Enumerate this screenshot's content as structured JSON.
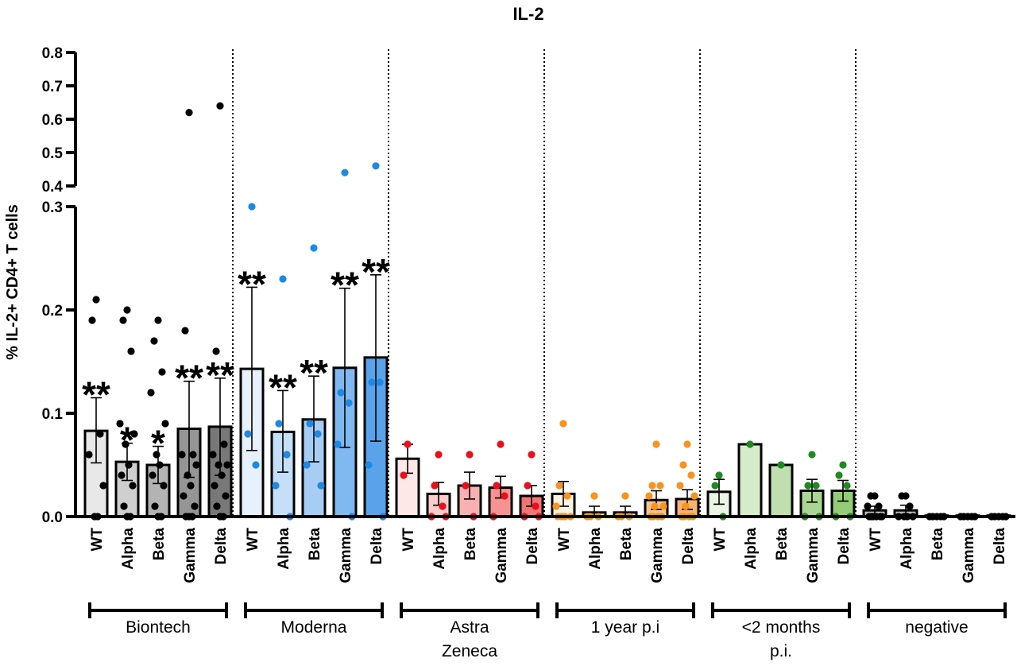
{
  "chart_data": {
    "type": "bar",
    "title": "IL-2",
    "ylabel": "% IL-2+ CD4+ T cells",
    "xlabel": "",
    "ylim": [
      0,
      0.8
    ],
    "axis_break": [
      0.3,
      0.4
    ],
    "yticks_lower": [
      "0.0",
      "0.1",
      "0.2",
      "0.3"
    ],
    "yticks_upper": [
      "0.4",
      "0.5",
      "0.6",
      "0.7",
      "0.8"
    ],
    "variants": [
      "WT",
      "Alpha",
      "Beta",
      "Gamma",
      "Delta"
    ],
    "groups": [
      {
        "label": "Biontech",
        "label2": "",
        "bar_colors": [
          "#e8e8e8",
          "#cfcfcf",
          "#b3b3b3",
          "#959595",
          "#787878"
        ],
        "point_color": "#000000",
        "stars": [
          "**",
          "*",
          "*",
          "**",
          "**"
        ],
        "bars": [
          {
            "mean": 0.083,
            "err_low": 0.052,
            "err_high": 0.115,
            "points": [
              0.21,
              0.19,
              0.08,
              0.06,
              0.03,
              0.0,
              0.0
            ]
          },
          {
            "mean": 0.053,
            "err_low": 0.035,
            "err_high": 0.071,
            "points": [
              0.2,
              0.19,
              0.16,
              0.09,
              0.08,
              0.07,
              0.05,
              0.04,
              0.03,
              0.01,
              0.0,
              0.0
            ]
          },
          {
            "mean": 0.05,
            "err_low": 0.032,
            "err_high": 0.068,
            "points": [
              0.19,
              0.17,
              0.14,
              0.12,
              0.09,
              0.06,
              0.05,
              0.04,
              0.03,
              0.01,
              0.0,
              0.0
            ]
          },
          {
            "mean": 0.085,
            "err_low": 0.038,
            "err_high": 0.131,
            "points": [
              0.62,
              0.18,
              0.06,
              0.06,
              0.05,
              0.04,
              0.03,
              0.02,
              0.01,
              0.0,
              0.0,
              0.0
            ]
          },
          {
            "mean": 0.087,
            "err_low": 0.04,
            "err_high": 0.134,
            "points": [
              0.64,
              0.16,
              0.07,
              0.06,
              0.05,
              0.05,
              0.04,
              0.03,
              0.02,
              0.01,
              0.0,
              0.0
            ]
          }
        ]
      },
      {
        "label": "Moderna",
        "label2": "",
        "bar_colors": [
          "#e6f1fc",
          "#c6dff8",
          "#a8cdf4",
          "#80b8f0",
          "#5aa2ea"
        ],
        "point_color": "#1e88e5",
        "stars": [
          "**",
          "**",
          "**",
          "**",
          "**"
        ],
        "bars": [
          {
            "mean": 0.143,
            "err_low": 0.064,
            "err_high": 0.222,
            "points": [
              0.3,
              0.08,
              0.05
            ]
          },
          {
            "mean": 0.082,
            "err_low": 0.043,
            "err_high": 0.122,
            "points": [
              0.23,
              0.09,
              0.06,
              0.03,
              0.0
            ]
          },
          {
            "mean": 0.094,
            "err_low": 0.053,
            "err_high": 0.136,
            "points": [
              0.26,
              0.09,
              0.08,
              0.05,
              0.03
            ]
          },
          {
            "mean": 0.144,
            "err_low": 0.067,
            "err_high": 0.221,
            "points": [
              0.44,
              0.12,
              0.11,
              0.07,
              0.0
            ]
          },
          {
            "mean": 0.154,
            "err_low": 0.073,
            "err_high": 0.234,
            "points": [
              0.46,
              0.13,
              0.13,
              0.05,
              0.0
            ]
          }
        ]
      },
      {
        "label": "Astra",
        "label2": "Zeneca",
        "bar_colors": [
          "#fde7e7",
          "#fccbcb",
          "#f9b0b0",
          "#f69292",
          "#f27474"
        ],
        "point_color": "#e8101c",
        "stars": [
          "",
          "",
          "",
          "",
          ""
        ],
        "bars": [
          {
            "mean": 0.056,
            "err_low": 0.042,
            "err_high": 0.07,
            "points": [
              0.07,
              0.04
            ]
          },
          {
            "mean": 0.022,
            "err_low": 0.011,
            "err_high": 0.033,
            "points": [
              0.06,
              0.03,
              0.01,
              0.0,
              0.0
            ]
          },
          {
            "mean": 0.03,
            "err_low": 0.017,
            "err_high": 0.043,
            "points": [
              0.06,
              0.03,
              0.0
            ]
          },
          {
            "mean": 0.028,
            "err_low": 0.018,
            "err_high": 0.039,
            "points": [
              0.07,
              0.03,
              0.02,
              0.0
            ]
          },
          {
            "mean": 0.02,
            "err_low": 0.01,
            "err_high": 0.03,
            "points": [
              0.06,
              0.03,
              0.01,
              0.0,
              0.0
            ]
          }
        ]
      },
      {
        "label": "1 year p.i",
        "label2": "",
        "bar_colors": [
          "#fff2e3",
          "#fde3c6",
          "#fbd4a9",
          "#f9c48c",
          "#f7b46f"
        ],
        "point_color": "#f7931e",
        "stars": [
          "",
          "",
          "",
          "",
          ""
        ],
        "bars": [
          {
            "mean": 0.022,
            "err_low": 0.01,
            "err_high": 0.034,
            "points": [
              0.09,
              0.03,
              0.02,
              0.01,
              0.0,
              0.0,
              0.0,
              0.0
            ]
          },
          {
            "mean": 0.004,
            "err_low": 0.0,
            "err_high": 0.01,
            "points": [
              0.02,
              0.0,
              0.0,
              0.0
            ]
          },
          {
            "mean": 0.004,
            "err_low": 0.0,
            "err_high": 0.01,
            "points": [
              0.02,
              0.0,
              0.0,
              0.0
            ]
          },
          {
            "mean": 0.016,
            "err_low": 0.007,
            "err_high": 0.025,
            "points": [
              0.07,
              0.03,
              0.03,
              0.02,
              0.01,
              0.01,
              0.0,
              0.0,
              0.0,
              0.0
            ]
          },
          {
            "mean": 0.017,
            "err_low": 0.007,
            "err_high": 0.026,
            "points": [
              0.07,
              0.05,
              0.04,
              0.03,
              0.02,
              0.01,
              0.0,
              0.0,
              0.0,
              0.0
            ]
          }
        ]
      },
      {
        "label": "<2 months",
        "label2": "p.i.",
        "bar_colors": [
          "#eaf5e4",
          "#d5ebc9",
          "#bfe0ae",
          "#aad693",
          "#94cc78"
        ],
        "point_color": "#1f8a1f",
        "stars": [
          "",
          "",
          "",
          "",
          ""
        ],
        "bars": [
          {
            "mean": 0.024,
            "err_low": 0.012,
            "err_high": 0.036,
            "points": [
              0.04,
              0.03,
              0.0
            ]
          },
          {
            "mean": 0.07,
            "err_low": 0.07,
            "err_high": 0.07,
            "points": [
              0.07
            ]
          },
          {
            "mean": 0.05,
            "err_low": 0.05,
            "err_high": 0.05,
            "points": [
              0.05
            ]
          },
          {
            "mean": 0.025,
            "err_low": 0.014,
            "err_high": 0.036,
            "points": [
              0.06,
              0.03,
              0.03,
              0.0,
              0.0
            ]
          },
          {
            "mean": 0.025,
            "err_low": 0.015,
            "err_high": 0.035,
            "points": [
              0.05,
              0.04,
              0.03,
              0.0,
              0.0
            ]
          }
        ]
      },
      {
        "label": "negative",
        "label2": "",
        "bar_colors": [
          "#bdbdbd",
          "#bdbdbd",
          "#bdbdbd",
          "#bdbdbd",
          "#bdbdbd"
        ],
        "point_color": "#000000",
        "stars": [
          "",
          "",
          "",
          "",
          ""
        ],
        "bars": [
          {
            "mean": 0.006,
            "err_low": 0.002,
            "err_high": 0.01,
            "points": [
              0.02,
              0.02,
              0.01,
              0.01,
              0.0,
              0.0,
              0.0,
              0.0,
              0.0,
              0.0
            ]
          },
          {
            "mean": 0.006,
            "err_low": 0.002,
            "err_high": 0.011,
            "points": [
              0.02,
              0.02,
              0.01,
              0.0,
              0.0,
              0.0,
              0.0
            ]
          },
          {
            "mean": 0.001,
            "err_low": 0.0,
            "err_high": 0.002,
            "points": [
              0.0,
              0.0,
              0.0,
              0.0,
              0.0
            ]
          },
          {
            "mean": 0.001,
            "err_low": 0.0,
            "err_high": 0.002,
            "points": [
              0.0,
              0.0,
              0.0,
              0.0,
              0.0
            ]
          },
          {
            "mean": 0.001,
            "err_low": 0.0,
            "err_high": 0.002,
            "points": [
              0.0,
              0.0,
              0.0,
              0.0,
              0.0
            ]
          }
        ]
      }
    ]
  }
}
